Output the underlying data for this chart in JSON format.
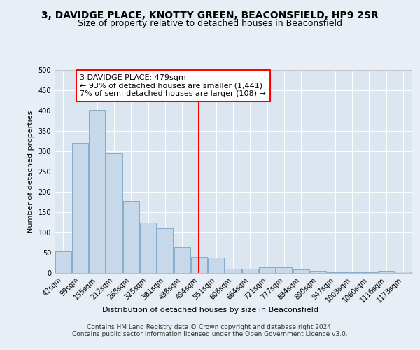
{
  "title": "3, DAVIDGE PLACE, KNOTTY GREEN, BEACONSFIELD, HP9 2SR",
  "subtitle": "Size of property relative to detached houses in Beaconsfield",
  "xlabel": "Distribution of detached houses by size in Beaconsfield",
  "ylabel": "Number of detached properties",
  "categories": [
    "42sqm",
    "99sqm",
    "155sqm",
    "212sqm",
    "268sqm",
    "325sqm",
    "381sqm",
    "438sqm",
    "494sqm",
    "551sqm",
    "608sqm",
    "664sqm",
    "721sqm",
    "777sqm",
    "834sqm",
    "890sqm",
    "947sqm",
    "1003sqm",
    "1060sqm",
    "1116sqm",
    "1173sqm"
  ],
  "values": [
    53,
    320,
    402,
    295,
    178,
    125,
    110,
    63,
    40,
    38,
    10,
    10,
    13,
    13,
    8,
    5,
    2,
    1,
    1,
    5,
    3
  ],
  "bar_color": "#c8d8eb",
  "bar_edge_color": "#6699bb",
  "vline_x_index": 8,
  "vline_color": "red",
  "annotation_text": "3 DAVIDGE PLACE: 479sqm\n← 93% of detached houses are smaller (1,441)\n7% of semi-detached houses are larger (108) →",
  "annotation_box_color": "white",
  "annotation_box_edge_color": "red",
  "footer": "Contains HM Land Registry data © Crown copyright and database right 2024.\nContains public sector information licensed under the Open Government Licence v3.0.",
  "bg_color": "#e8eef5",
  "plot_bg_color": "#dce6f1",
  "ylim": [
    0,
    500
  ],
  "yticks": [
    0,
    50,
    100,
    150,
    200,
    250,
    300,
    350,
    400,
    450,
    500
  ],
  "title_fontsize": 10,
  "subtitle_fontsize": 9,
  "axis_label_fontsize": 8,
  "tick_fontsize": 7,
  "annotation_fontsize": 8,
  "footer_fontsize": 6.5
}
